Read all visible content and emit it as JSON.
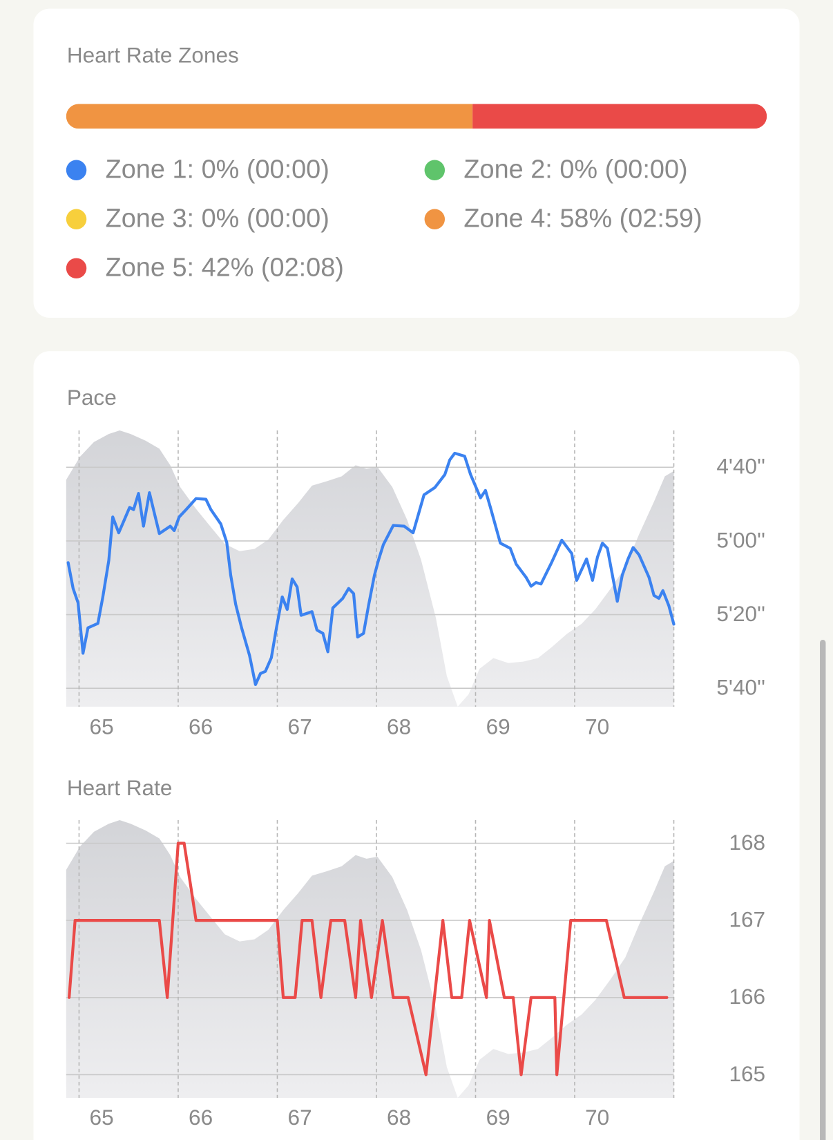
{
  "zones": {
    "title": "Heart Rate Zones",
    "items": [
      {
        "label": "Zone 1: 0% (00:00)",
        "value": 0,
        "color": "#3b82f0"
      },
      {
        "label": "Zone 2: 0% (00:00)",
        "value": 0,
        "color": "#5fc46b"
      },
      {
        "label": "Zone 3: 0% (00:00)",
        "value": 0,
        "color": "#f7cf3c"
      },
      {
        "label": "Zone 4: 58% (02:59)",
        "value": 58,
        "color": "#f09442"
      },
      {
        "label": "Zone 5: 42% (02:08)",
        "value": 42,
        "color": "#ea4a48"
      }
    ]
  },
  "chart_data": [
    {
      "type": "line",
      "title": "Pace",
      "xlim": [
        64.87,
        71.0
      ],
      "xticks": [
        65,
        66,
        67,
        68,
        69,
        70
      ],
      "ylim": [
        270,
        345
      ],
      "y_reversed": true,
      "yticks": [
        {
          "value": 280,
          "label": "4'40''"
        },
        {
          "value": 300,
          "label": "5'00''"
        },
        {
          "value": 320,
          "label": "5'20''"
        },
        {
          "value": 340,
          "label": "5'40''"
        }
      ],
      "grid": true,
      "area": {
        "color": "#d9dadd",
        "ylim": [
          0,
          100
        ],
        "x": [
          64.87,
          65.01,
          65.15,
          65.3,
          65.41,
          65.52,
          65.67,
          65.81,
          65.92,
          66.02,
          66.18,
          66.33,
          66.47,
          66.62,
          66.77,
          66.91,
          67.06,
          67.21,
          67.35,
          67.5,
          67.65,
          67.79,
          67.9,
          68.01,
          68.16,
          68.31,
          68.45,
          68.6,
          68.71,
          68.82,
          68.93,
          69.04,
          69.18,
          69.33,
          69.48,
          69.63,
          69.77,
          69.92,
          70.07,
          70.21,
          70.36,
          70.51,
          70.65,
          70.8,
          70.91,
          71.0
        ],
        "values": [
          82.1,
          90.5,
          95.8,
          98.7,
          100,
          98.7,
          96.3,
          93.4,
          87.4,
          79.5,
          71.6,
          65.0,
          58.9,
          56.3,
          57.1,
          60.5,
          67.6,
          73.7,
          80.0,
          81.6,
          83.4,
          87.4,
          86.1,
          86.8,
          79.5,
          67.6,
          53.2,
          32.1,
          11.1,
          0,
          4.5,
          13.7,
          17.6,
          15.8,
          16.3,
          17.6,
          21.6,
          26.3,
          30.0,
          35.3,
          42.6,
          50.5,
          62.4,
          74.2,
          83.4,
          85.3
        ]
      },
      "series": [
        {
          "color": "#3b82f0",
          "x": [
            64.89,
            64.94,
            64.99,
            65.04,
            65.09,
            65.19,
            65.24,
            65.3,
            65.34,
            65.4,
            65.45,
            65.51,
            65.55,
            65.6,
            65.65,
            65.71,
            65.76,
            65.81,
            65.92,
            65.96,
            66.01,
            66.08,
            66.18,
            66.28,
            66.33,
            66.43,
            66.49,
            66.53,
            66.58,
            66.64,
            66.72,
            66.78,
            66.83,
            66.88,
            66.94,
            66.99,
            67.05,
            67.1,
            67.15,
            67.2,
            67.24,
            67.35,
            67.4,
            67.46,
            67.51,
            67.56,
            67.66,
            67.72,
            67.77,
            67.81,
            67.87,
            67.92,
            67.98,
            68.02,
            68.07,
            68.17,
            68.28,
            68.37,
            68.48,
            68.59,
            68.69,
            68.74,
            68.79,
            68.89,
            68.95,
            69.05,
            69.1,
            69.15,
            69.25,
            69.35,
            69.41,
            69.51,
            69.56,
            69.61,
            69.66,
            69.77,
            69.87,
            69.97,
            70.02,
            70.12,
            70.18,
            70.23,
            70.28,
            70.33,
            70.43,
            70.48,
            70.54,
            70.59,
            70.65,
            70.75,
            70.8,
            70.85,
            70.89,
            70.95,
            71.0
          ],
          "values": [
            305.9,
            312.9,
            316.8,
            330.5,
            323.6,
            322.4,
            315.2,
            305.3,
            293.5,
            297.8,
            294.7,
            290.9,
            291.5,
            287.1,
            296.0,
            286.9,
            292.5,
            298.0,
            296.0,
            297.2,
            293.5,
            291.5,
            288.5,
            288.7,
            291.5,
            295.4,
            300.4,
            309.3,
            317.2,
            323.6,
            331.1,
            339.0,
            336.0,
            335.4,
            331.7,
            323.8,
            315.2,
            318.6,
            310.3,
            312.5,
            320.2,
            319.2,
            324.2,
            325.1,
            330.1,
            318.2,
            315.6,
            312.9,
            314.3,
            326.1,
            325.1,
            317.6,
            309.3,
            305.3,
            301.0,
            295.8,
            296.0,
            297.8,
            287.5,
            285.5,
            282.0,
            278.0,
            276.2,
            277.0,
            282.0,
            288.3,
            286.3,
            290.9,
            300.6,
            302.0,
            306.3,
            309.9,
            312.3,
            311.3,
            311.7,
            305.7,
            299.8,
            303.4,
            310.7,
            304.9,
            310.7,
            304.4,
            300.6,
            302.0,
            316.4,
            309.3,
            304.8,
            301.8,
            303.8,
            309.9,
            314.8,
            315.6,
            313.5,
            317.6,
            322.6
          ]
        }
      ]
    },
    {
      "type": "line",
      "title": "Heart Rate",
      "xlim": [
        64.87,
        71.0
      ],
      "xticks": [
        65,
        66,
        67,
        68,
        69,
        70
      ],
      "ylim": [
        164.7,
        168.3
      ],
      "y_reversed": false,
      "yticks": [
        165,
        166,
        167,
        168
      ],
      "grid": true,
      "area": {
        "color": "#d9dadd",
        "ylim": [
          0,
          100
        ],
        "x": [
          64.87,
          65.01,
          65.15,
          65.3,
          65.41,
          65.52,
          65.67,
          65.81,
          65.92,
          66.02,
          66.18,
          66.33,
          66.47,
          66.62,
          66.77,
          66.91,
          67.06,
          67.21,
          67.35,
          67.5,
          67.65,
          67.79,
          67.9,
          68.01,
          68.16,
          68.31,
          68.45,
          68.6,
          68.71,
          68.82,
          68.93,
          69.04,
          69.18,
          69.33,
          69.48,
          69.63,
          69.77,
          69.92,
          70.07,
          70.21,
          70.36,
          70.51,
          70.65,
          70.8,
          70.91,
          71.0
        ],
        "values": [
          82.1,
          90.5,
          95.8,
          98.7,
          100,
          98.7,
          96.3,
          93.4,
          87.4,
          79.5,
          71.6,
          65.0,
          58.9,
          56.3,
          57.1,
          60.5,
          67.6,
          73.7,
          80.0,
          81.6,
          83.4,
          87.4,
          86.1,
          86.8,
          79.5,
          67.6,
          53.2,
          32.1,
          11.1,
          0,
          4.5,
          13.7,
          17.6,
          15.8,
          16.3,
          17.6,
          21.6,
          26.3,
          30.0,
          35.3,
          42.6,
          50.5,
          62.4,
          74.2,
          83.4,
          85.3
        ]
      },
      "series": [
        {
          "color": "#ea4a48",
          "x": [
            64.9,
            64.96,
            65.81,
            65.89,
            66.0,
            66.06,
            66.18,
            67.0,
            67.06,
            67.18,
            67.25,
            67.35,
            67.44,
            67.54,
            67.68,
            67.79,
            67.84,
            67.95,
            68.06,
            68.17,
            68.32,
            68.5,
            68.67,
            68.76,
            68.86,
            68.94,
            69.11,
            69.14,
            69.29,
            69.38,
            69.46,
            69.56,
            69.8,
            69.82,
            69.96,
            70.32,
            70.5,
            70.93
          ],
          "values": [
            166,
            167,
            167,
            166,
            168,
            168,
            167,
            167,
            166,
            166,
            167,
            167,
            166,
            167,
            167,
            166,
            167,
            166,
            167,
            166,
            166,
            165,
            167,
            166,
            166,
            167,
            166,
            167,
            166,
            166,
            165,
            166,
            166,
            165,
            167,
            167,
            166,
            166
          ]
        }
      ]
    }
  ]
}
